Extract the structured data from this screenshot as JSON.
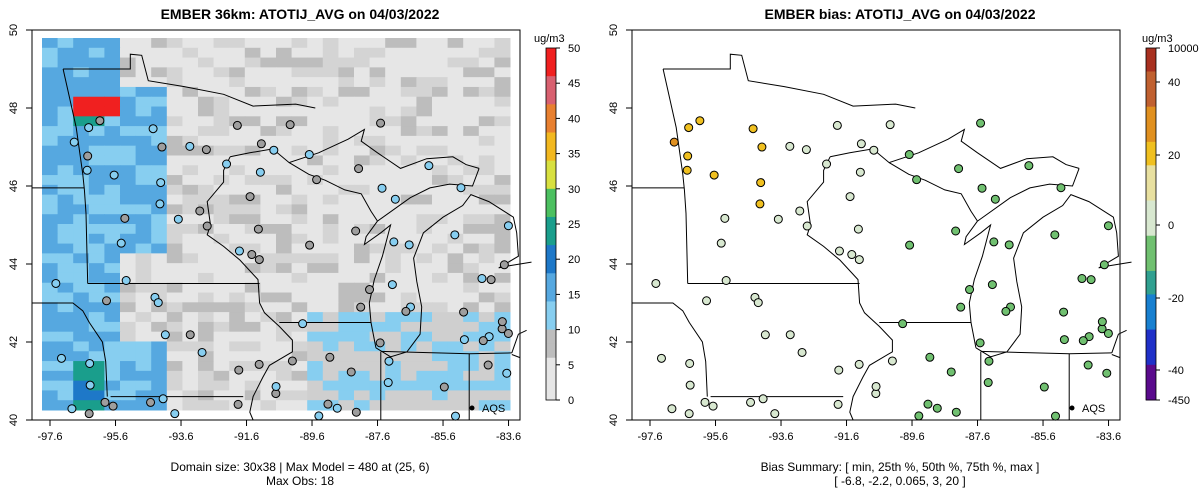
{
  "left_panel": {
    "title": "EMBER 36km: ATOTIJ_AVG on 04/03/2022",
    "x_ticks": [
      "-97.6",
      "-95.6",
      "-93.6",
      "-91.6",
      "-89.6",
      "-87.6",
      "-85.6",
      "-83.6"
    ],
    "y_ticks": [
      "40",
      "42",
      "44",
      "46",
      "48",
      "50"
    ],
    "colorbar_unit": "ug/m3",
    "colorbar_ticks": [
      "0",
      "5",
      "10",
      "15",
      "20",
      "25",
      "30",
      "35",
      "40",
      "45",
      "50"
    ],
    "legend_label": "AQS",
    "summary_line1": "Domain size: 30x38 | Max Model = 480 at (25, 6)",
    "summary_line2": "Max Obs: 18"
  },
  "right_panel": {
    "title": "EMBER bias: ATOTIJ_AVG on 04/03/2022",
    "x_ticks": [
      "-97.6",
      "-95.6",
      "-93.6",
      "-91.6",
      "-89.6",
      "-87.6",
      "-85.6",
      "-83.6"
    ],
    "y_ticks": [
      "40",
      "42",
      "44",
      "46",
      "48",
      "50"
    ],
    "colorbar_unit": "ug/m3",
    "colorbar_ticks": [
      "10000",
      "40",
      "20",
      "0",
      "-20",
      "-40",
      "-450"
    ],
    "legend_label": "AQS",
    "summary_line1": "Bias Summary: [ min, 25th %, 50th %, 75th %, max ]",
    "summary_line2": "[ -6.8,  -2.2,  0.065,  3,  20 ]"
  },
  "colors": {
    "conc_scale": [
      "#e6e6e6",
      "#bdbdbd",
      "#87cef0",
      "#56a8e0",
      "#1e78c8",
      "#1a9e8c",
      "#4cc060",
      "#d8e040",
      "#f2b820",
      "#e88030",
      "#d86070",
      "#f02020"
    ],
    "bias_scale": [
      "#5a0a8c",
      "#2030c8",
      "#1880d0",
      "#30a090",
      "#70c070",
      "#d8e8d0",
      "#e8e0a0",
      "#f0c020",
      "#e09020",
      "#c06030",
      "#a83020"
    ],
    "map_lines": "#000000",
    "background": "#ffffff"
  }
}
